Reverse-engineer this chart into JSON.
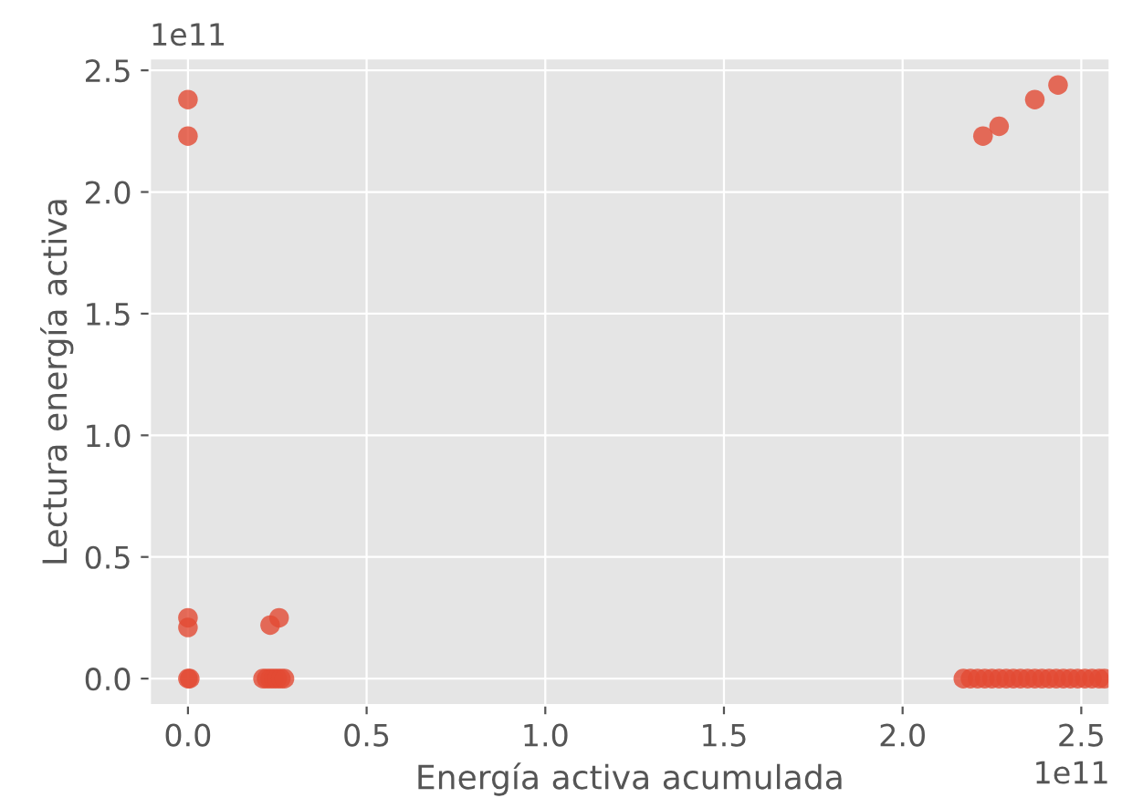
{
  "chart_data": {
    "type": "scatter",
    "xlabel": "Energía activa acumulada",
    "ylabel": "Lectura energía activa",
    "annotations": [
      "1e11",
      "1e11"
    ],
    "x": [
      0.0,
      0.0,
      0.0,
      0.0,
      0.0,
      0.005,
      0.21,
      0.22,
      0.23,
      0.24,
      0.25,
      0.26,
      0.27,
      0.23,
      0.255,
      2.17,
      2.19,
      2.21,
      2.23,
      2.25,
      2.27,
      2.29,
      2.31,
      2.33,
      2.35,
      2.37,
      2.39,
      2.41,
      2.43,
      2.45,
      2.47,
      2.49,
      2.51,
      2.53,
      2.55,
      2.565,
      2.225,
      2.27,
      2.37,
      2.435
    ],
    "values": [
      2.38,
      2.23,
      0.25,
      0.21,
      0.0,
      0.0,
      0.0,
      0.0,
      0.0,
      0.0,
      0.0,
      0.0,
      0.0,
      0.22,
      0.25,
      0.0,
      0.0,
      0.0,
      0.0,
      0.0,
      0.0,
      0.0,
      0.0,
      0.0,
      0.0,
      0.0,
      0.0,
      0.0,
      0.0,
      0.0,
      0.0,
      0.0,
      0.0,
      0.0,
      0.0,
      0.0,
      2.23,
      2.27,
      2.38,
      2.44
    ],
    "color": "#e24a33",
    "marker": "circle",
    "xlim": [
      -0.107,
      2.58
    ],
    "ylim": [
      -0.11,
      2.55
    ],
    "xticks": [
      {
        "value": 0,
        "label": "0.0"
      },
      0.5,
      {
        "value": 1,
        "label": "1.0"
      },
      1.5,
      {
        "value": 2,
        "label": "2.0"
      },
      2.5
    ],
    "yticks": [
      {
        "value": 0,
        "label": "0.0"
      },
      0.5,
      {
        "value": 1,
        "label": "1.0"
      },
      1.5,
      {
        "value": 2,
        "label": "2.0"
      },
      2.5
    ],
    "grid": true
  }
}
